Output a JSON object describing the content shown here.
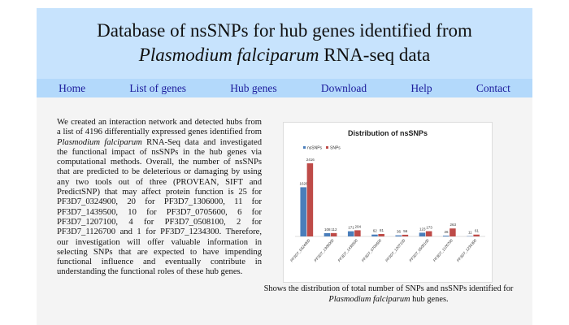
{
  "header": {
    "title_line1": "Database of nsSNPs for hub genes identified from",
    "title_italic": "Plasmodium falciparum",
    "title_rest": " RNA-seq data"
  },
  "nav": [
    "Home",
    "List of genes",
    "Hub genes",
    "Download",
    "Help",
    "Contact"
  ],
  "intro": {
    "before": "We created an interaction network and detected hubs from a list of 4196 differentially expressed genes identified from ",
    "italic": "Plasmodium falciparum",
    "after": " RNA-Seq data and investigated the functional impact of nsSNPs in the hub genes via computational methods. Overall, the number of nsSNPs that are predicted to be deleterious or damaging by using any two tools out of three (PROVEAN, SIFT and PredictSNP) that may affect protein function is 25 for PF3D7_0324900, 20 for PF3D7_1306000, 11 for PF3D7_1439500, 10 for PF3D7_0705600, 6 for PF3D7_1207100, 4 for PF3D7_0508100, 2 for PF3D7_1126700 and 1 for PF3D7_1234300. Therefore, our investigation will offer valuable information in selecting SNPs that are expected to have impending functional influence and eventually contribute in understanding the functional roles of these hub genes."
  },
  "figure": {
    "caption_before": "Shows the distribution of total number of SNPs and nsSNPs identified for ",
    "caption_italic": "Plasmodium falciparum",
    "caption_after": " hub genes."
  },
  "chart_data": {
    "type": "bar",
    "title": "Distribution of nsSNPs",
    "categories": [
      "PF3D7_0324900",
      "PF3D7_1306000",
      "PF3D7_1439500",
      "PF3D7_0705600",
      "PF3D7_1207100",
      "PF3D7_0508100",
      "PF3D7_1126700",
      "PF3D7_1234300"
    ],
    "series": [
      {
        "name": "nsSNPs",
        "color": "#4a7ebb",
        "values": [
          1626,
          108,
          171,
          62,
          36,
          123,
          26,
          11
        ]
      },
      {
        "name": "SNPs",
        "color": "#be4b48",
        "values": [
          2416,
          112,
          204,
          81,
          56,
          173,
          263,
          61
        ]
      }
    ]
  }
}
